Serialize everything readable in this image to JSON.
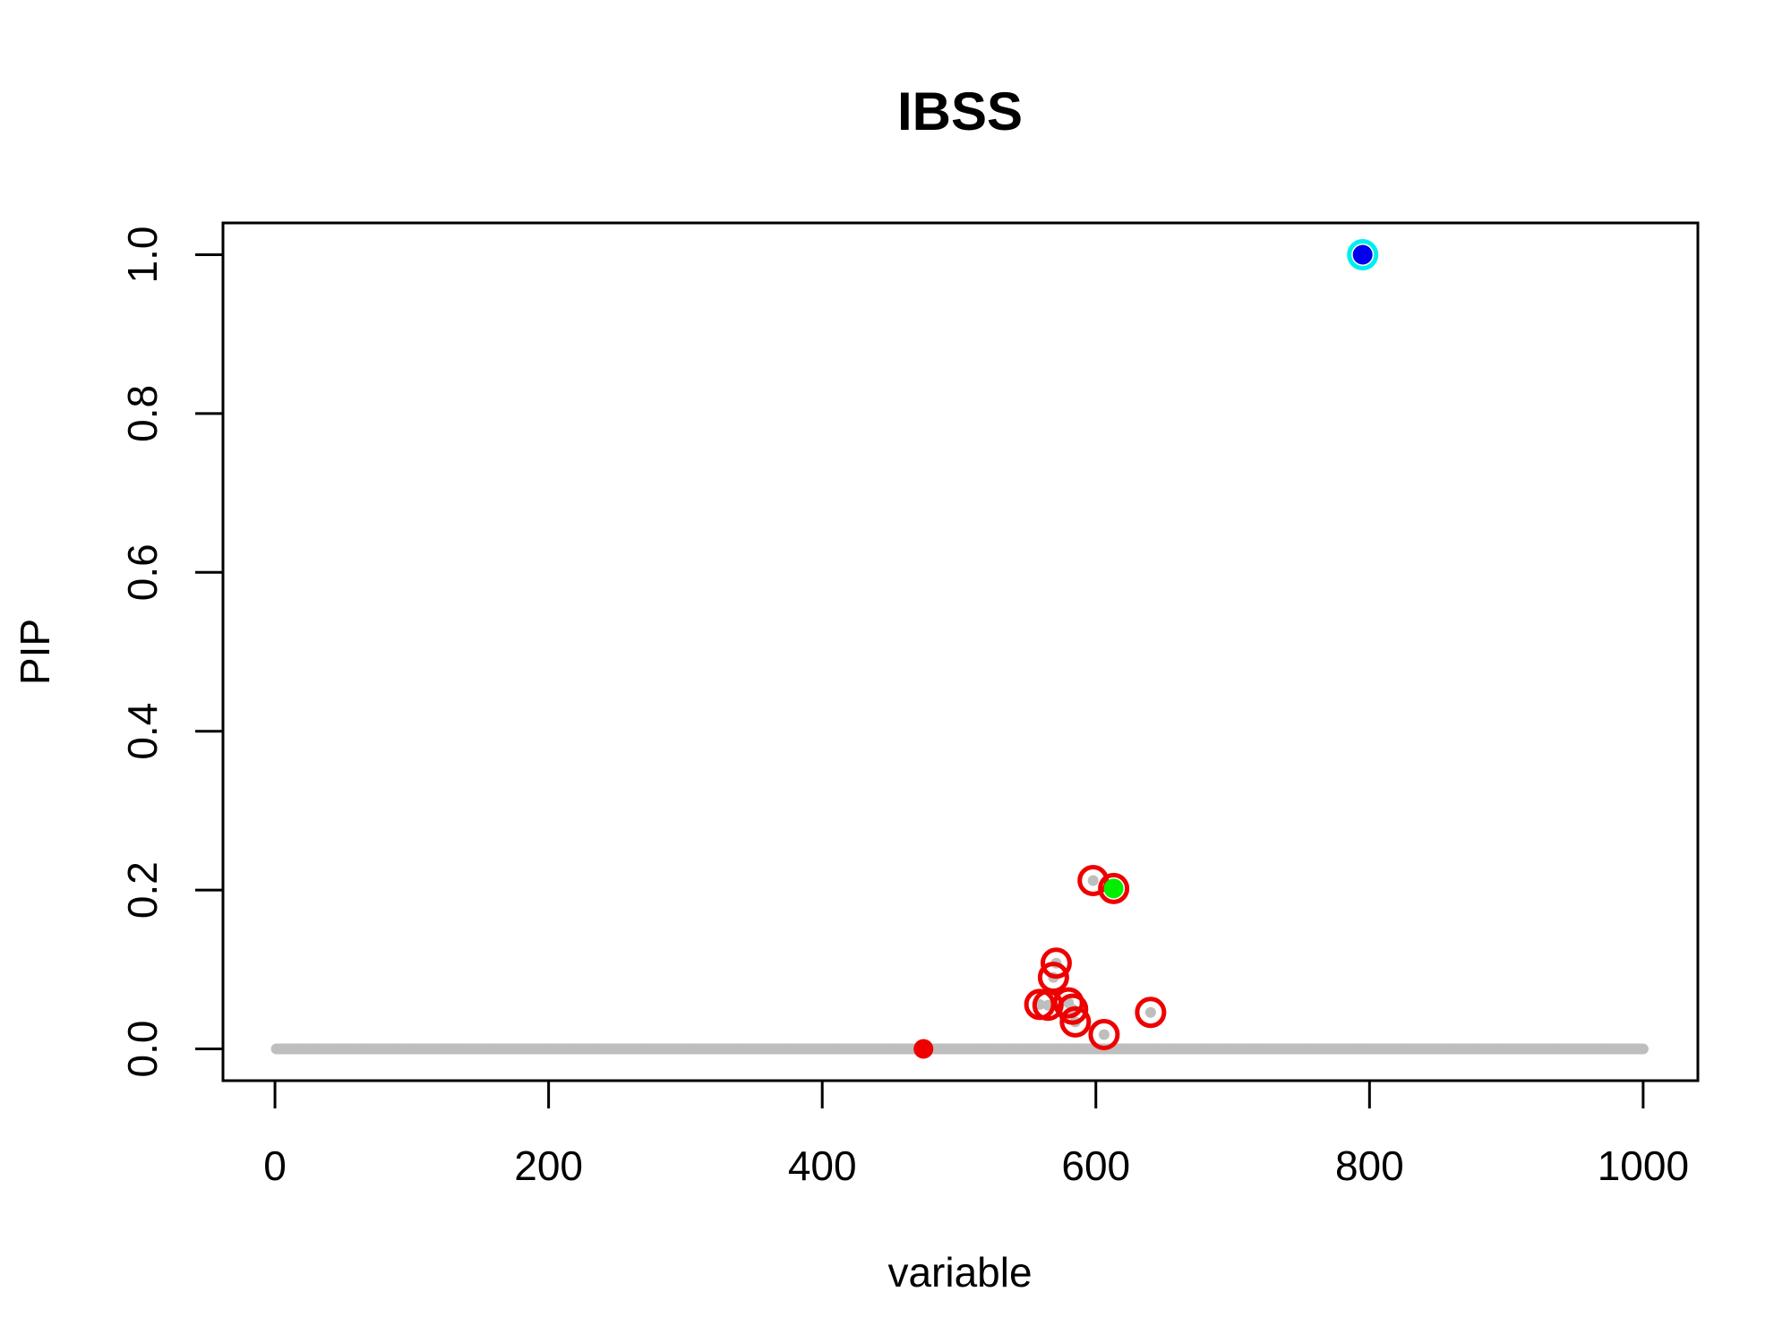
{
  "chart_data": {
    "type": "scatter",
    "title": "IBSS",
    "xlabel": "variable",
    "ylabel": "PIP",
    "xlim": [
      -38,
      1040
    ],
    "ylim": [
      -0.04,
      1.04
    ],
    "x_ticks": [
      "0",
      "200",
      "400",
      "600",
      "800",
      "1000"
    ],
    "y_ticks": [
      "0.0",
      "0.2",
      "0.4",
      "0.6",
      "0.8",
      "1.0"
    ],
    "grid": false,
    "colors": {
      "background_points": "#bebebe",
      "red": "#ee0000",
      "green": "#00ee00",
      "blue": "#0000ee",
      "cyan": "#00eeee"
    },
    "background_series": {
      "name": "",
      "x_range": [
        1,
        1000
      ],
      "y": 0.0
    },
    "highlighted_points": [
      {
        "x": 598,
        "y": 0.212
      },
      {
        "x": 613,
        "y": 0.202
      },
      {
        "x": 571,
        "y": 0.108
      },
      {
        "x": 569,
        "y": 0.09
      },
      {
        "x": 559,
        "y": 0.056
      },
      {
        "x": 565,
        "y": 0.055
      },
      {
        "x": 580,
        "y": 0.058
      },
      {
        "x": 583,
        "y": 0.05
      },
      {
        "x": 585,
        "y": 0.034
      },
      {
        "x": 606,
        "y": 0.018
      },
      {
        "x": 640,
        "y": 0.046
      }
    ],
    "effect_points": [
      {
        "x": 474,
        "y": 0.0,
        "color": "#ee0000",
        "ring": false
      },
      {
        "x": 613,
        "y": 0.202,
        "color": "#00ee00",
        "ring": false
      },
      {
        "x": 795,
        "y": 1.0,
        "color": "#0000ee",
        "ring": true,
        "ring_color": "#00eeee"
      }
    ]
  }
}
